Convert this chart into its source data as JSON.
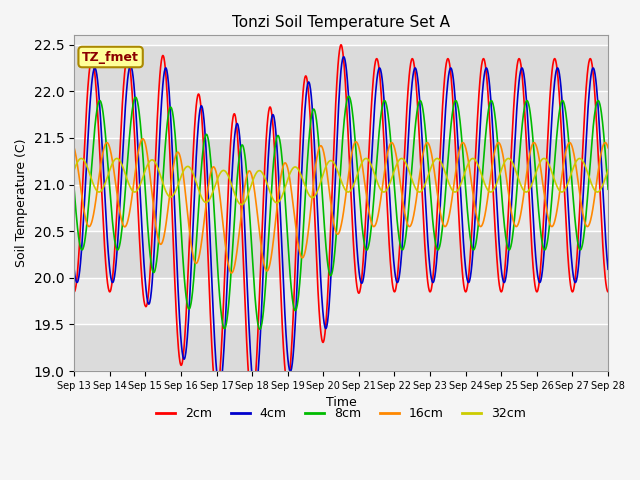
{
  "title": "Tonzi Soil Temperature Set A",
  "xlabel": "Time",
  "ylabel": "Soil Temperature (C)",
  "ylim": [
    19.0,
    22.6
  ],
  "yticks": [
    19.0,
    19.5,
    20.0,
    20.5,
    21.0,
    21.5,
    22.0,
    22.5
  ],
  "xtick_labels": [
    "Sep 13",
    "Sep 14",
    "Sep 15",
    "Sep 16",
    "Sep 17",
    "Sep 18",
    "Sep 19",
    "Sep 20",
    "Sep 21",
    "Sep 22",
    "Sep 23",
    "Sep 24",
    "Sep 25",
    "Sep 26",
    "Sep 27",
    "Sep 28"
  ],
  "legend_label": "TZ_fmet",
  "series_labels": [
    "2cm",
    "4cm",
    "8cm",
    "16cm",
    "32cm"
  ],
  "series_colors": [
    "#ff0000",
    "#0000cc",
    "#00bb00",
    "#ff8800",
    "#cccc00"
  ],
  "line_width": 1.2,
  "n_days": 15,
  "n_points_per_day": 96,
  "figsize": [
    6.4,
    4.8
  ],
  "dpi": 100,
  "annotation_text": "TZ_fmet",
  "annotation_color": "#8b0000",
  "annotation_bg": "#ffff99",
  "annotation_edge": "#aa8800"
}
